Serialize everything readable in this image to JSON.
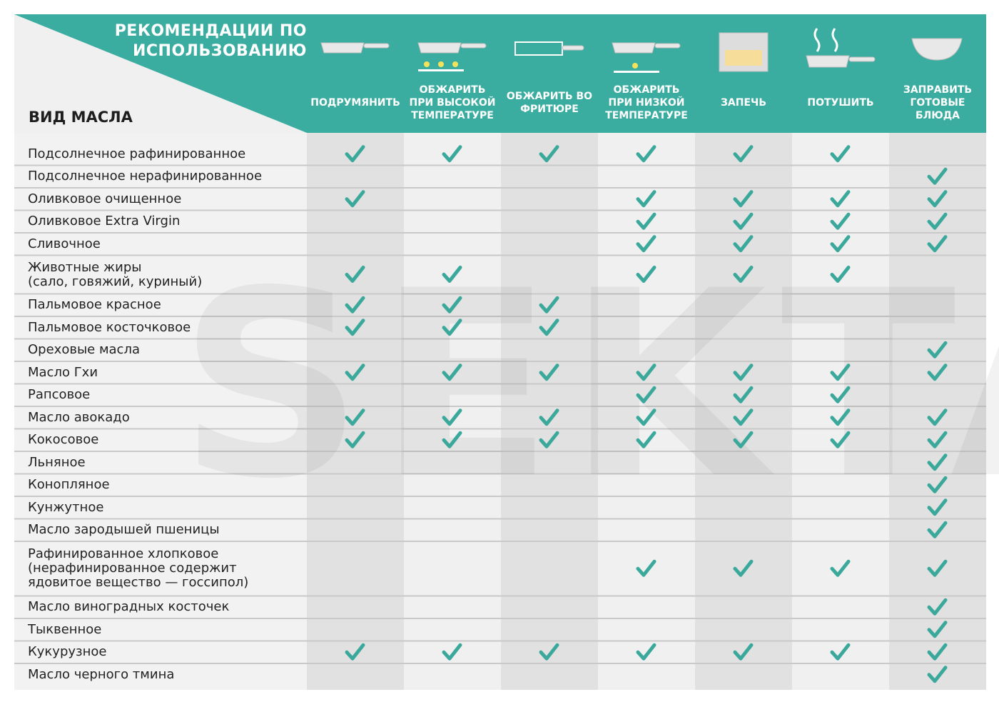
{
  "header": {
    "title": "РЕКОМЕНДАЦИИ ПО ИСПОЛЬЗОВАНИЮ",
    "corner_label": "ВИД МАСЛА",
    "watermark": "SEKTA"
  },
  "table": {
    "columns": [
      "ПОДРУМЯНИТЬ",
      "ОБЖАРИТЬ ПРИ ВЫСОКОЙ ТЕМПЕРАТУРЕ",
      "ОБЖАРИТЬ ВО ФРИТЮРЕ",
      "ОБЖАРИТЬ ПРИ НИЗКОЙ ТЕМПЕРАТУРЕ",
      "ЗАПЕЧЬ",
      "ПОТУШИТЬ",
      "ЗАПРАВИТЬ ГОТОВЫЕ БЛЮДА"
    ],
    "rows": [
      {
        "name": "Подсолнечное рафинированное",
        "checks": [
          true,
          true,
          true,
          true,
          true,
          true,
          false
        ]
      },
      {
        "name": "Подсолнечное нерафинированное",
        "checks": [
          false,
          false,
          false,
          false,
          false,
          false,
          true
        ]
      },
      {
        "name": "Оливковое очищенное",
        "checks": [
          true,
          false,
          false,
          true,
          true,
          true,
          true
        ]
      },
      {
        "name": "Оливковое Extra Virgin",
        "checks": [
          false,
          false,
          false,
          true,
          true,
          true,
          true
        ]
      },
      {
        "name": "Сливочное",
        "checks": [
          false,
          false,
          false,
          true,
          true,
          true,
          true
        ]
      },
      {
        "name": "Животные жиры\n(сало, говяжий, куриный)",
        "checks": [
          true,
          true,
          false,
          true,
          true,
          true,
          false
        ]
      },
      {
        "name": "Пальмовое красное",
        "checks": [
          true,
          true,
          true,
          false,
          false,
          false,
          false
        ]
      },
      {
        "name": "Пальмовое косточковое",
        "checks": [
          true,
          true,
          true,
          false,
          false,
          false,
          false
        ]
      },
      {
        "name": "Ореховые масла",
        "checks": [
          false,
          false,
          false,
          false,
          false,
          false,
          true
        ]
      },
      {
        "name": "Масло Гхи",
        "checks": [
          true,
          true,
          true,
          true,
          true,
          true,
          true
        ]
      },
      {
        "name": "Рапсовое",
        "checks": [
          false,
          false,
          false,
          true,
          true,
          true,
          false
        ]
      },
      {
        "name": "Масло авокадо",
        "checks": [
          true,
          true,
          true,
          true,
          true,
          true,
          true
        ]
      },
      {
        "name": "Кокосовое",
        "checks": [
          true,
          true,
          true,
          true,
          true,
          true,
          true
        ]
      },
      {
        "name": "Льняное",
        "checks": [
          false,
          false,
          false,
          false,
          false,
          false,
          true
        ]
      },
      {
        "name": "Конопляное",
        "checks": [
          false,
          false,
          false,
          false,
          false,
          false,
          true
        ]
      },
      {
        "name": "Кунжутное",
        "checks": [
          false,
          false,
          false,
          false,
          false,
          false,
          true
        ]
      },
      {
        "name": "Масло зародышей пшеницы",
        "checks": [
          false,
          false,
          false,
          false,
          false,
          false,
          true
        ]
      },
      {
        "name": "Рафинированное хлопковое\n(нерафинированное содержит\nядовитое вещество — госсипол)",
        "checks": [
          false,
          false,
          false,
          true,
          true,
          true,
          true
        ]
      },
      {
        "name": "Масло виноградных косточек",
        "checks": [
          false,
          false,
          false,
          false,
          false,
          false,
          true
        ]
      },
      {
        "name": "Тыквенное",
        "checks": [
          false,
          false,
          false,
          false,
          false,
          false,
          true
        ]
      },
      {
        "name": "Кукурузное",
        "checks": [
          true,
          true,
          true,
          true,
          true,
          true,
          true
        ]
      },
      {
        "name": "Масло черного тмина",
        "checks": [
          false,
          false,
          false,
          false,
          false,
          false,
          true
        ]
      }
    ]
  }
}
